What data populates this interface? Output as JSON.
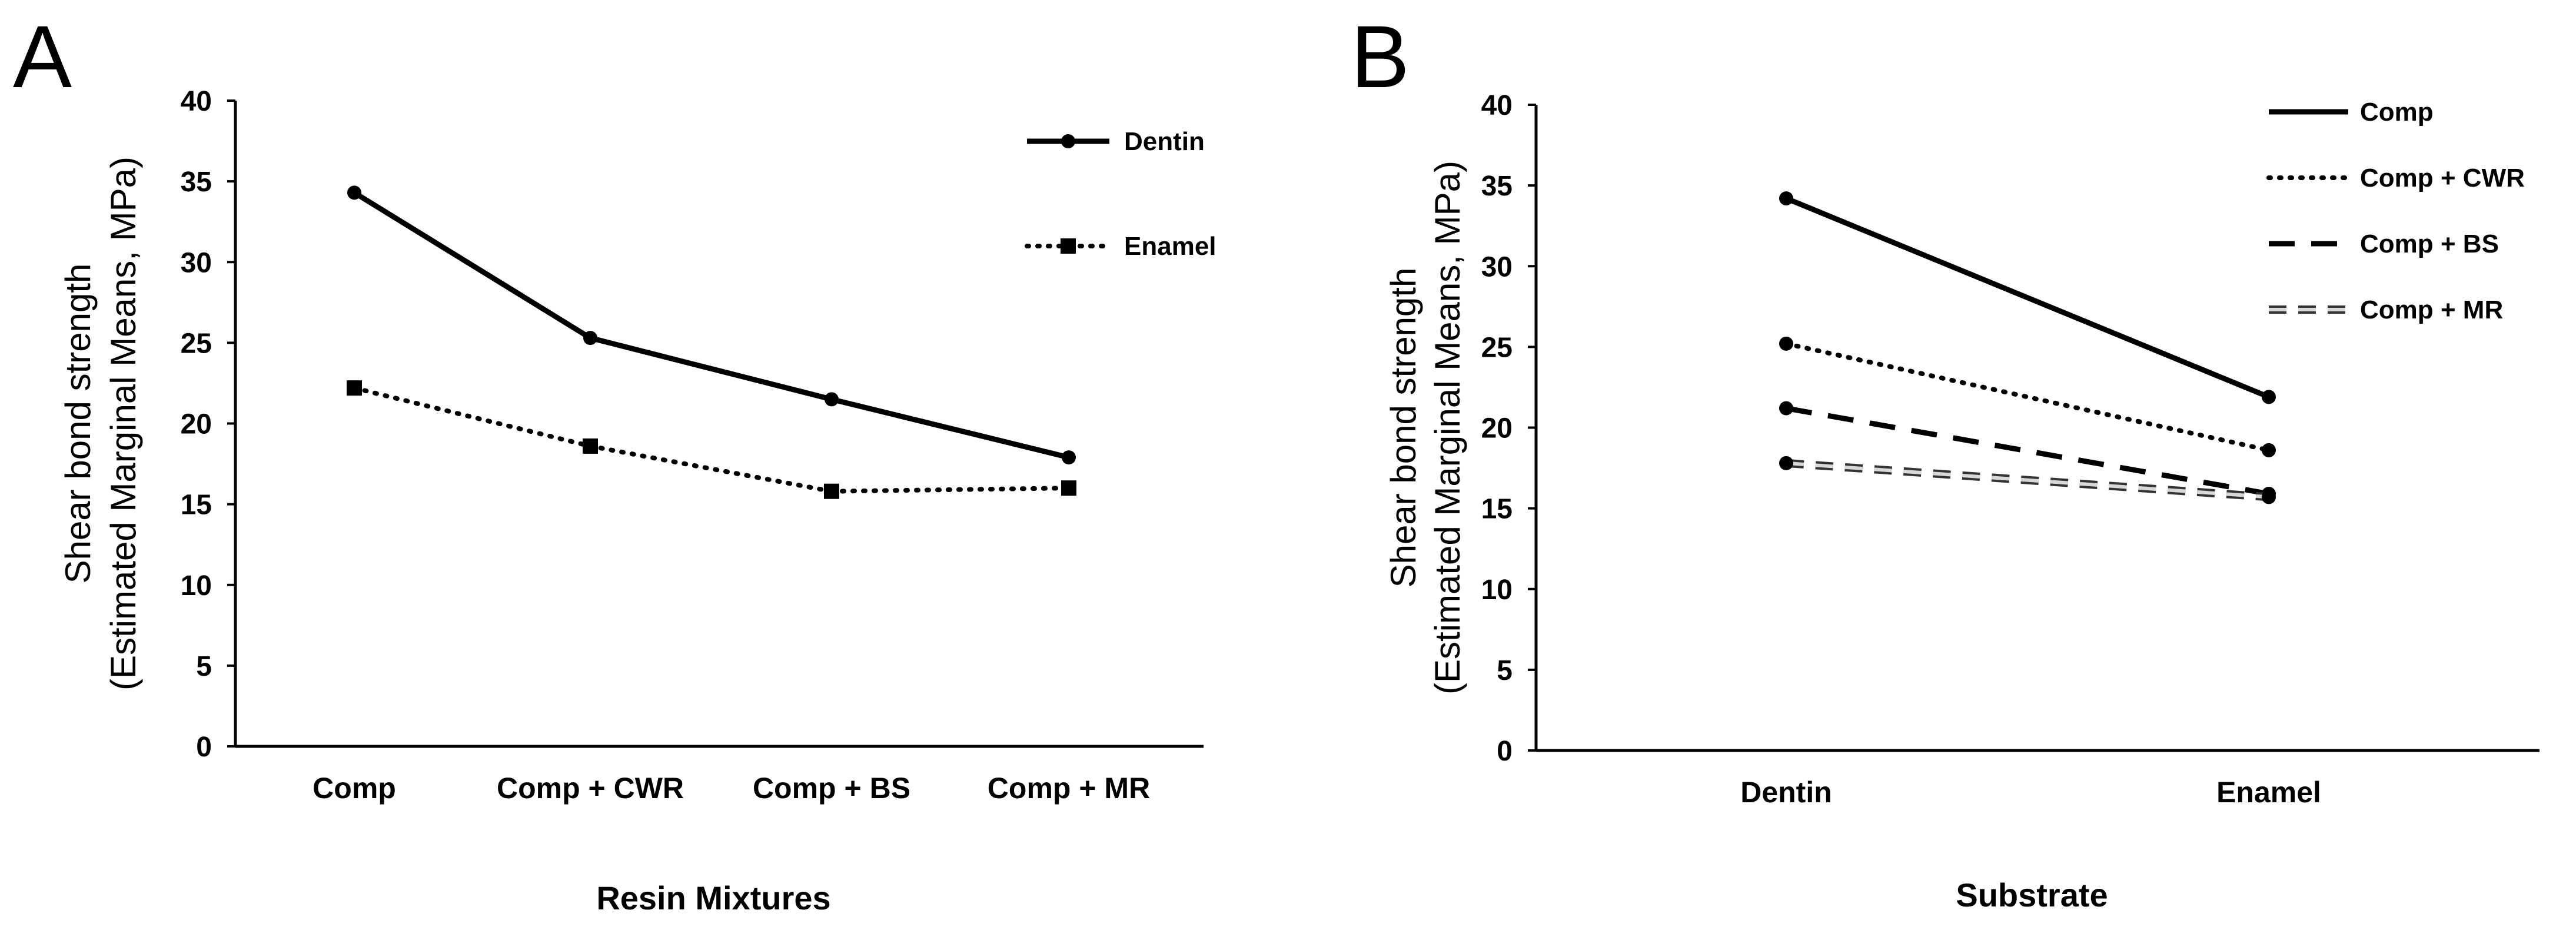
{
  "chart_data": [
    {
      "panel": "A",
      "type": "line",
      "xlabel": "Resin Mixtures",
      "ylabel_line1": "Shear bond strength",
      "ylabel_line2": "(Estimated Marginal Means, MPa)",
      "ylim": [
        0,
        40
      ],
      "yticks": [
        0,
        5,
        10,
        15,
        20,
        25,
        30,
        35,
        40
      ],
      "categories": [
        "Comp",
        "Comp + CWR",
        "Comp + BS",
        "Comp + MR"
      ],
      "legend_position": "top-right",
      "series": [
        {
          "name": "Dentin",
          "values": [
            34.3,
            25.3,
            21.5,
            17.9
          ],
          "line_style": "solid",
          "marker": "circle",
          "color": "#000000"
        },
        {
          "name": "Enamel",
          "values": [
            22.2,
            18.6,
            15.8,
            16.0
          ],
          "line_style": "dotted",
          "marker": "square",
          "color": "#000000"
        }
      ]
    },
    {
      "panel": "B",
      "type": "line",
      "xlabel": "Substrate",
      "ylabel_line1": "Shear bond strength",
      "ylabel_line2": "(Estimated Marginal Means, MPa)",
      "ylim": [
        0,
        40
      ],
      "yticks": [
        0,
        5,
        10,
        15,
        20,
        25,
        30,
        35,
        40
      ],
      "categories": [
        "Dentin",
        "Enamel"
      ],
      "legend_position": "top-right",
      "series": [
        {
          "name": "Comp",
          "values": [
            34.2,
            21.9
          ],
          "line_style": "solid",
          "marker": "circle",
          "color": "#000000"
        },
        {
          "name": "Comp + CWR",
          "values": [
            25.2,
            18.6
          ],
          "line_style": "dotted",
          "marker": "circle",
          "color": "#000000"
        },
        {
          "name": "Comp + BS",
          "values": [
            21.2,
            15.9
          ],
          "line_style": "dashed",
          "marker": "circle",
          "color": "#000000"
        },
        {
          "name": "Comp + MR",
          "values": [
            17.8,
            15.7
          ],
          "line_style": "outlined-dash",
          "marker": "circle",
          "color": "#000000"
        }
      ]
    }
  ]
}
